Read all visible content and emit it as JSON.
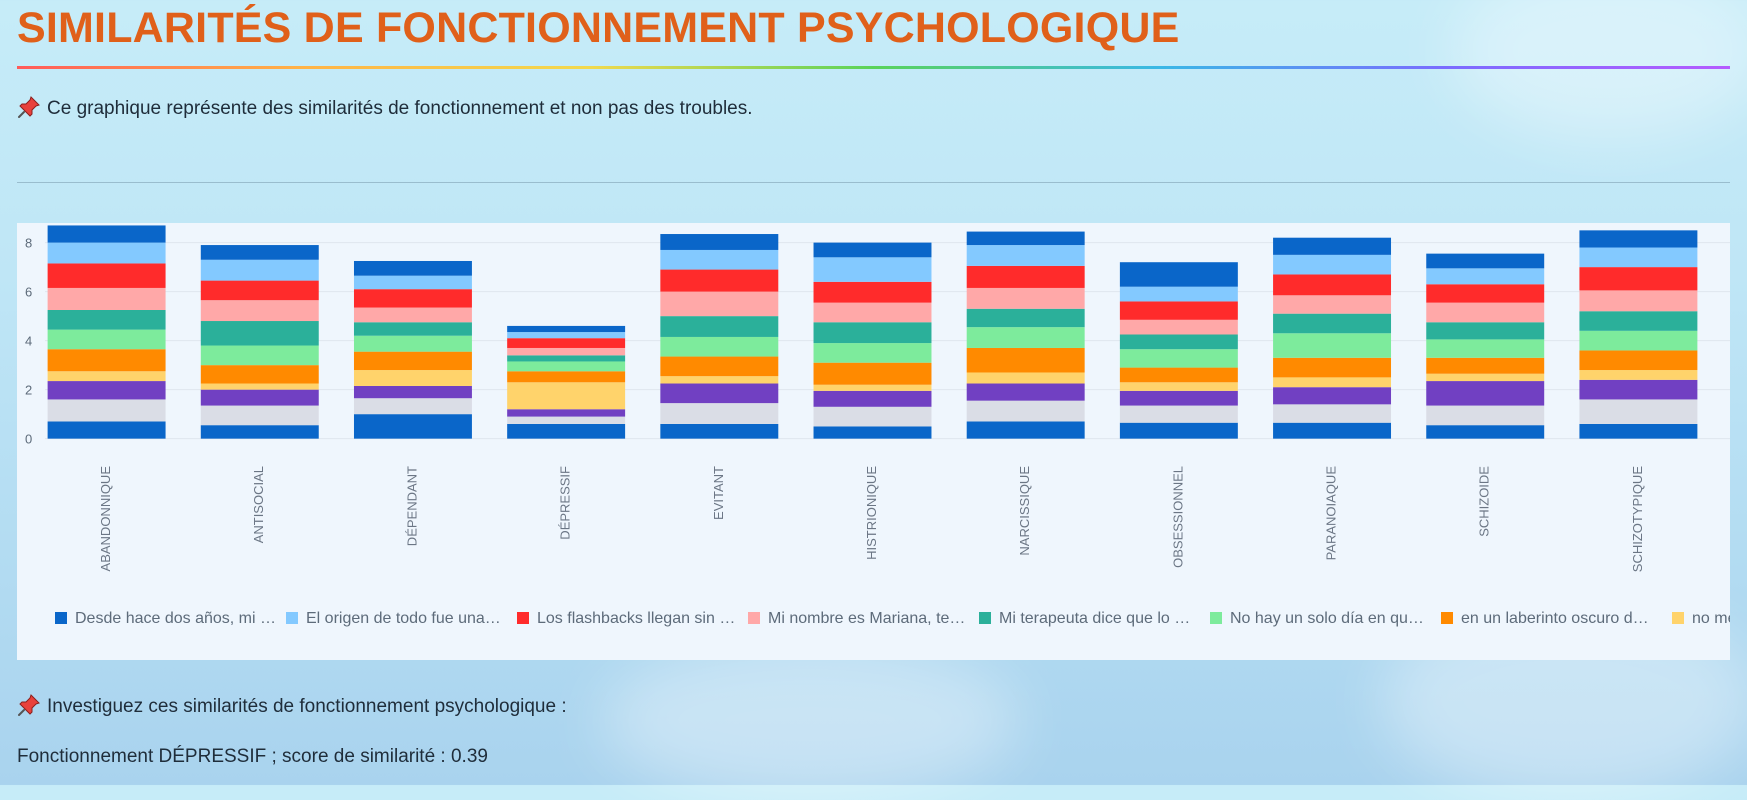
{
  "header": {
    "title": "SIMILARITÉS DE FONCTIONNEMENT PSYCHOLOGIQUE",
    "note": "Ce graphique représente des similarités de fonctionnement et non pas des troubles."
  },
  "footer": {
    "investigate": "Investiguez ces similarités de fonctionnement psychologique :",
    "result": "Fonctionnement DÉPRESSIF ; score de similarité : 0.39"
  },
  "icons": {
    "pin": "pushpin-icon"
  },
  "colors": {
    "title": "#e0601a",
    "panel": "#eff6fd"
  },
  "chart_data": {
    "type": "bar",
    "stacked": true,
    "categories": [
      "ABANDONNIQUE",
      "ANTISOCIAL",
      "DÉPENDANT",
      "DÉPRESSIF",
      "EVITANT",
      "HISTRIONIQUE",
      "NARCISSIQUE",
      "OBSESSIONNEL",
      "PARANOIAQUE",
      "SCHIZOIDE",
      "SCHIZOTYPIQUE"
    ],
    "yticks": [
      0,
      2,
      4,
      6,
      8
    ],
    "ylim": [
      -0.3,
      8.8
    ],
    "grid": true,
    "legend_position": "bottom",
    "series": [
      {
        "name": "",
        "color": "#0a66c9",
        "values": [
          0.7,
          0.55,
          1.0,
          0.6,
          0.6,
          0.5,
          0.7,
          0.65,
          0.65,
          0.55,
          0.6
        ]
      },
      {
        "name": "",
        "color": "#dadde6",
        "values": [
          0.9,
          0.8,
          0.65,
          0.3,
          0.85,
          0.8,
          0.85,
          0.7,
          0.75,
          0.8,
          1.0
        ]
      },
      {
        "name": "",
        "color": "#7140c2",
        "values": [
          0.75,
          0.65,
          0.5,
          0.3,
          0.8,
          0.65,
          0.7,
          0.6,
          0.7,
          1.0,
          0.8
        ]
      },
      {
        "name": "",
        "color": "#ffd36b",
        "values": [
          0.4,
          0.25,
          0.65,
          1.1,
          0.3,
          0.25,
          0.45,
          0.35,
          0.4,
          0.3,
          0.4
        ]
      },
      {
        "name": "",
        "color": "#ff8a00",
        "values": [
          0.9,
          0.75,
          0.75,
          0.45,
          0.8,
          0.9,
          1.0,
          0.6,
          0.8,
          0.65,
          0.8
        ]
      },
      {
        "name": "No hay un solo día en qu…",
        "color": "#7deb9c",
        "values": [
          0.8,
          0.8,
          0.65,
          0.4,
          0.8,
          0.8,
          0.85,
          0.75,
          1.0,
          0.75,
          0.8
        ]
      },
      {
        "name": "Mi terapeuta dice que lo …",
        "color": "#2bb09a",
        "values": [
          0.8,
          1.0,
          0.55,
          0.25,
          0.85,
          0.85,
          0.75,
          0.6,
          0.8,
          0.7,
          0.8
        ]
      },
      {
        "name": "Mi nombre es Mariana, te…",
        "color": "#ffa8a8",
        "values": [
          0.9,
          0.85,
          0.6,
          0.3,
          1.0,
          0.8,
          0.85,
          0.6,
          0.75,
          0.8,
          0.85
        ]
      },
      {
        "name": "Los flashbacks llegan sin …",
        "color": "#ff2b2b",
        "values": [
          1.0,
          0.8,
          0.75,
          0.4,
          0.9,
          0.85,
          0.9,
          0.75,
          0.85,
          0.75,
          0.95
        ]
      },
      {
        "name": "El origen de todo fue una…",
        "color": "#83c9ff",
        "values": [
          0.85,
          0.85,
          0.55,
          0.25,
          0.8,
          1.0,
          0.85,
          0.6,
          0.8,
          0.65,
          0.8
        ]
      },
      {
        "name": "Desde hace dos años, mi …",
        "color": "#0a66c9",
        "values": [
          0.7,
          0.6,
          0.6,
          0.25,
          0.65,
          0.6,
          0.55,
          1.0,
          0.7,
          0.6,
          0.7
        ]
      }
    ],
    "legend": [
      {
        "label": "Desde hace dos años, mi …",
        "color": "#0a66c9"
      },
      {
        "label": "El origen de todo fue una…",
        "color": "#83c9ff"
      },
      {
        "label": "Los flashbacks llegan sin …",
        "color": "#ff2b2b"
      },
      {
        "label": "Mi nombre es Mariana, te…",
        "color": "#ffa8a8"
      },
      {
        "label": "Mi terapeuta dice que lo …",
        "color": "#2bb09a"
      },
      {
        "label": "No hay un solo día en qu…",
        "color": "#7deb9c"
      },
      {
        "label": "en un laberinto oscuro d…",
        "color": "#ff8a00"
      },
      {
        "label": "no me",
        "color": "#ffd36b"
      }
    ]
  }
}
